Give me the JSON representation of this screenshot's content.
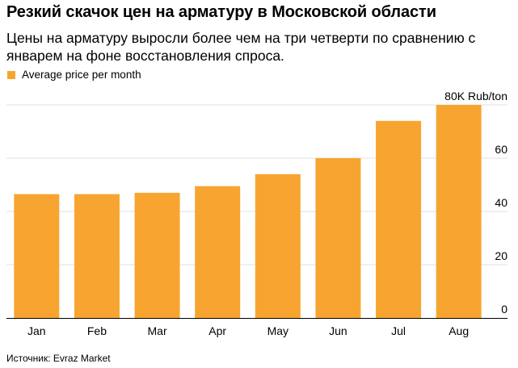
{
  "title": "Резкий скачок цен на арматуру в Московской области",
  "subtitle": "Цены на арматуру выросли более чем на три четверти по сравнению с январем на фоне восстановления спроса.",
  "source": "Источник: Evraz Market",
  "colors": {
    "bar": "#f7a530",
    "grid": "#e2e2e2",
    "axis": "#000000"
  },
  "chart_data": {
    "type": "bar",
    "categories": [
      "Jan",
      "Feb",
      "Mar",
      "Apr",
      "May",
      "Jun",
      "Jul",
      "Aug"
    ],
    "series": [
      {
        "name": "Average price per month",
        "values": [
          46.5,
          46.5,
          47,
          49.5,
          54,
          60,
          74,
          80
        ]
      }
    ],
    "ylim": [
      0,
      80
    ],
    "yticks": [
      0,
      20,
      40,
      60,
      80
    ],
    "ytick_labels": [
      "0",
      "20",
      "40",
      "60",
      "80K Rub/ton"
    ],
    "grid": true,
    "y_axis_position": "right",
    "legend_position": "top-left"
  }
}
